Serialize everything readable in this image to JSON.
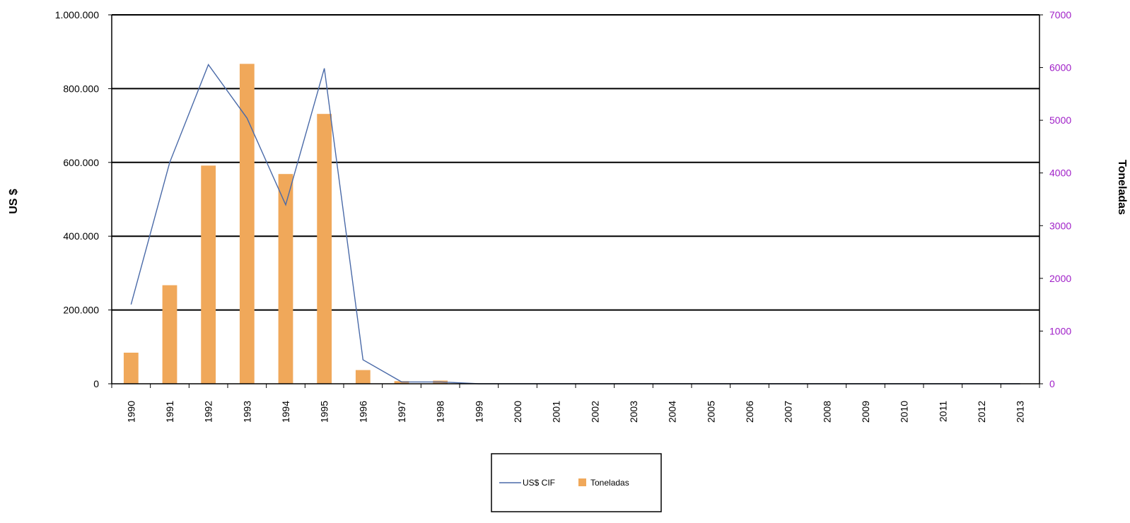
{
  "chart_data": {
    "type": "bar",
    "categories": [
      "1990",
      "1991",
      "1992",
      "1993",
      "1994",
      "1995",
      "1996",
      "1997",
      "1998",
      "1999",
      "2000",
      "2001",
      "2002",
      "2003",
      "2004",
      "2005",
      "2006",
      "2007",
      "2008",
      "2009",
      "2010",
      "2011",
      "2012",
      "2013"
    ],
    "series": [
      {
        "name": "US$ CIF",
        "type": "line",
        "axis": "left",
        "color": "#4a6aa8",
        "values": [
          215000,
          600000,
          865000,
          720000,
          485000,
          855000,
          65000,
          5000,
          5000,
          0,
          0,
          0,
          0,
          0,
          0,
          0,
          0,
          0,
          0,
          0,
          0,
          0,
          0,
          0
        ]
      },
      {
        "name": "Toneladas",
        "type": "bar",
        "axis": "right",
        "color": "#f0a85a",
        "values": [
          590,
          1870,
          4140,
          6070,
          3980,
          5120,
          260,
          50,
          60,
          0,
          0,
          0,
          0,
          0,
          0,
          0,
          0,
          0,
          0,
          0,
          0,
          0,
          0,
          0
        ]
      }
    ],
    "ylabel": "US $",
    "y2label": "Toneladas",
    "ylim": [
      0,
      1000000
    ],
    "y2lim": [
      0,
      7000
    ],
    "yticks": [
      "0",
      "200.000",
      "400.000",
      "600.000",
      "800.000",
      "1.000.000"
    ],
    "y2ticks": [
      "0",
      "1000",
      "2000",
      "3000",
      "4000",
      "5000",
      "6000",
      "7000"
    ],
    "grid": true,
    "legend_position": "bottom-center",
    "legend_labels": [
      "US$ CIF",
      "Toneladas"
    ],
    "colors": {
      "line": "#4a6aa8",
      "bar": "#f0a85a",
      "right_axis_text": "#a020c8"
    }
  }
}
